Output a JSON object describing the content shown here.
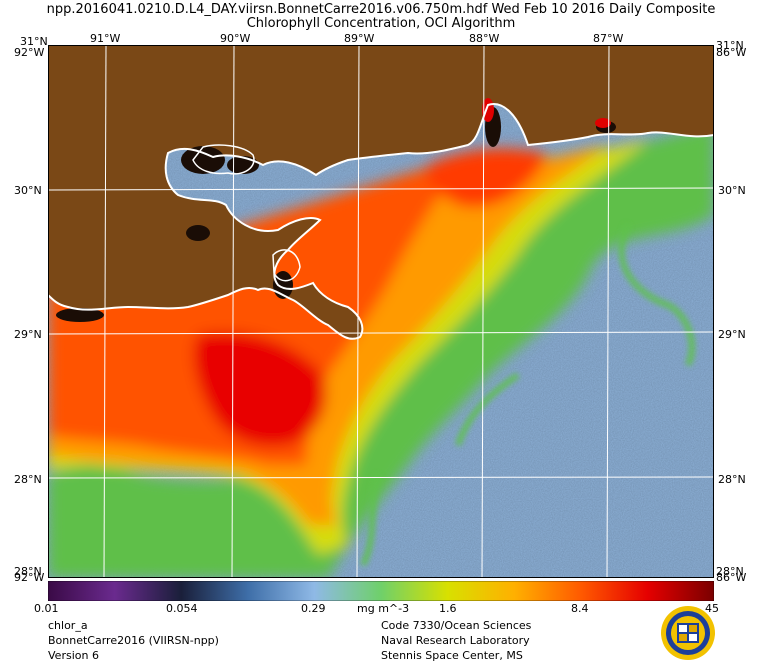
{
  "header": {
    "line1": "npp.2016041.0210.D.L4_DAY.viirsn.BonnetCarre2016.v06.750m.hdf   Wed Feb 10 2016 Daily Composite",
    "line2": "Chlorophyll Concentration, OCI Algorithm"
  },
  "lon_labels": [
    "91°W",
    "90°W",
    "89°W",
    "88°W",
    "87°W"
  ],
  "lat_labels": [
    "30°N",
    "29°N",
    "28°N"
  ],
  "corner_labels": {
    "top_left_lat": "31°N",
    "top_left_lon": "92°W",
    "top_right_lat": "31°N",
    "top_right_lon": "86°W",
    "bottom_left_lat": "28°N",
    "bottom_left_lon": "92°W",
    "bottom_right_lat": "28°N",
    "bottom_right_lon": "86°W"
  },
  "colorbar": {
    "ticks": [
      "0.01",
      "0.054",
      "0.29",
      "1.6",
      "8.4",
      "45"
    ],
    "units": "mg m^-3",
    "colors": [
      "#3a0a46",
      "#6a2a8e",
      "#1a1f3a",
      "#3e6ea8",
      "#8fb9e6",
      "#6fd06a",
      "#d8e000",
      "#ffb000",
      "#ff5a00",
      "#e50000",
      "#7a0000"
    ]
  },
  "footer_left": [
    "chlor_a",
    "BonnetCarre2016 (VIIRSN-npp)",
    "Version 6"
  ],
  "footer_right": [
    "Code 7330/Ocean Sciences",
    "Naval Research Laboratory",
    "Stennis Space Center, MS"
  ],
  "colors": {
    "land": "#7a4816",
    "ocean_low": "#8db1d8",
    "coast": "#ffffff",
    "grid": "#ffffff"
  }
}
